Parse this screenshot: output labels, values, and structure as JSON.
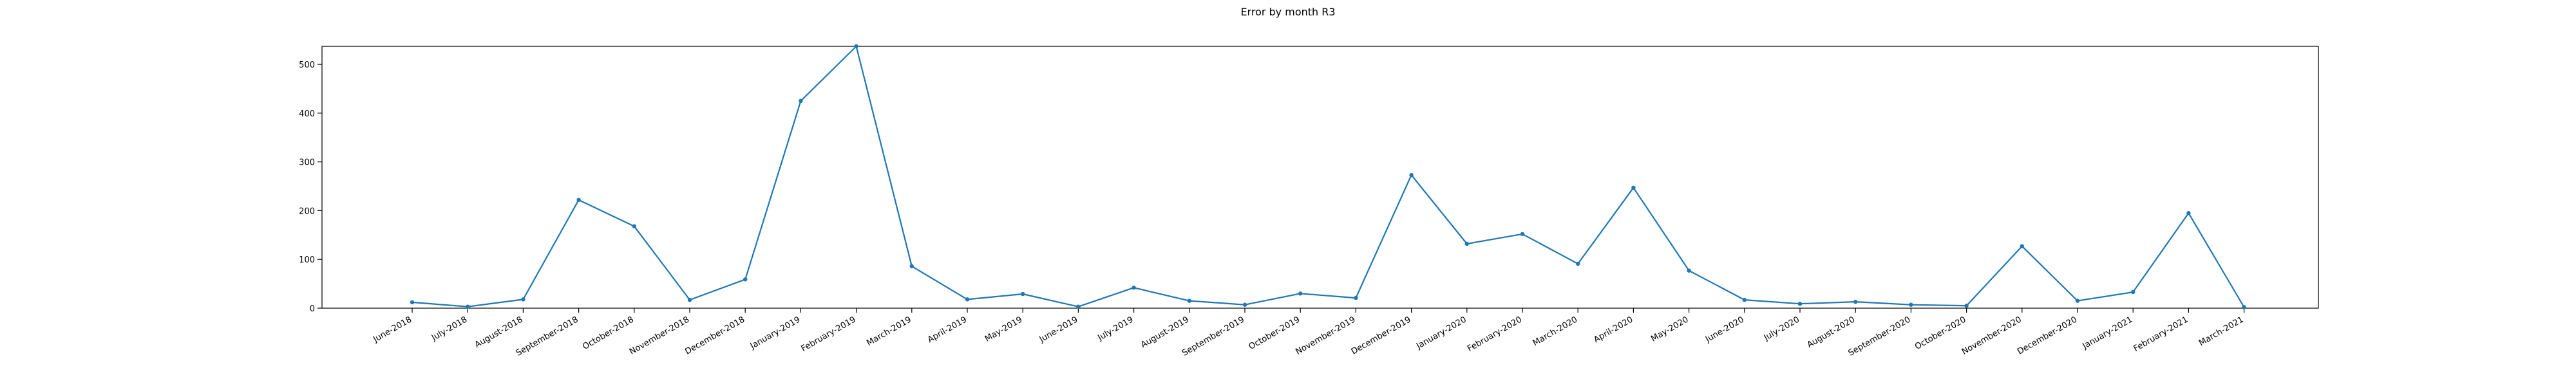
{
  "chart_data": {
    "type": "line",
    "title": "Error by month R3",
    "xlabel": "",
    "ylabel": "",
    "categories": [
      "June-2018",
      "July-2018",
      "August-2018",
      "September-2018",
      "October-2018",
      "November-2018",
      "December-2018",
      "January-2019",
      "February-2019",
      "March-2019",
      "April-2019",
      "May-2019",
      "June-2019",
      "July-2019",
      "August-2019",
      "September-2019",
      "October-2019",
      "November-2019",
      "December-2019",
      "January-2020",
      "February-2020",
      "March-2020",
      "April-2020",
      "May-2020",
      "June-2020",
      "July-2020",
      "August-2020",
      "September-2020",
      "October-2020",
      "November-2020",
      "December-2020",
      "January-2021",
      "February-2021",
      "March-2021"
    ],
    "series": [
      {
        "values": [
          12,
          3,
          18,
          222,
          168,
          17,
          59,
          425,
          537,
          86,
          18,
          29,
          3,
          42,
          15,
          7,
          30,
          21,
          273,
          132,
          152,
          91,
          247,
          77,
          17,
          9,
          13,
          7,
          5,
          127,
          15,
          33,
          195,
          2
        ]
      }
    ],
    "yticks": [
      0,
      100,
      200,
      300,
      400,
      500
    ],
    "ylim": [
      0,
      537
    ],
    "grid": false,
    "legend": false,
    "colors": {
      "line": "#1f77b4",
      "axis": "#000000",
      "background": "#ffffff"
    }
  }
}
